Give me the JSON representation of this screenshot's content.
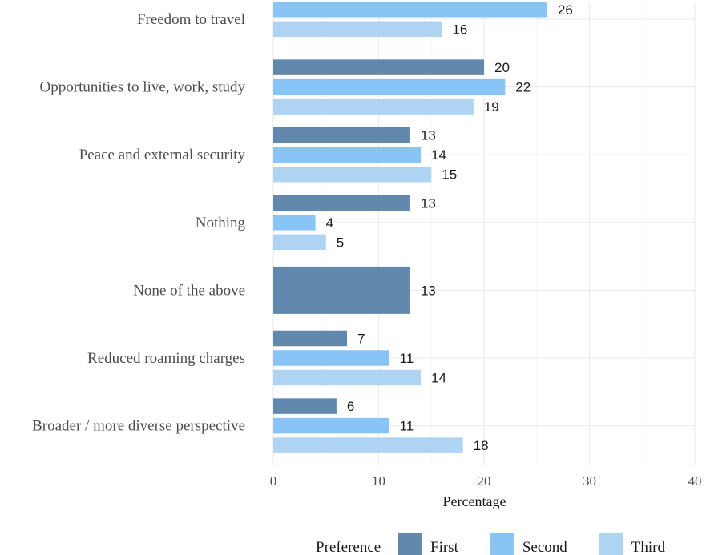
{
  "chart_data": {
    "type": "bar",
    "orientation": "horizontal",
    "categories": [
      "Freedom to travel",
      "Opportunities to live, work, study",
      "Peace and external security",
      "Nothing",
      "None of the above",
      "Reduced roaming charges",
      "Broader / more diverse perspective"
    ],
    "series": [
      {
        "name": "First",
        "color": "#6388ad",
        "values": [
          null,
          20,
          13,
          13,
          13,
          7,
          6
        ]
      },
      {
        "name": "Second",
        "color": "#88c4f6",
        "values": [
          26,
          22,
          14,
          4,
          null,
          11,
          11
        ]
      },
      {
        "name": "Third",
        "color": "#afd3f3",
        "values": [
          16,
          19,
          15,
          5,
          null,
          14,
          18
        ]
      }
    ],
    "xlabel": "Percentage",
    "ylabel": "",
    "xlim": [
      0,
      40
    ],
    "xticks": [
      0,
      10,
      20,
      30,
      40
    ],
    "legend_title": "Preference",
    "legend_position": "bottom",
    "grid": true,
    "data_labels": true
  }
}
